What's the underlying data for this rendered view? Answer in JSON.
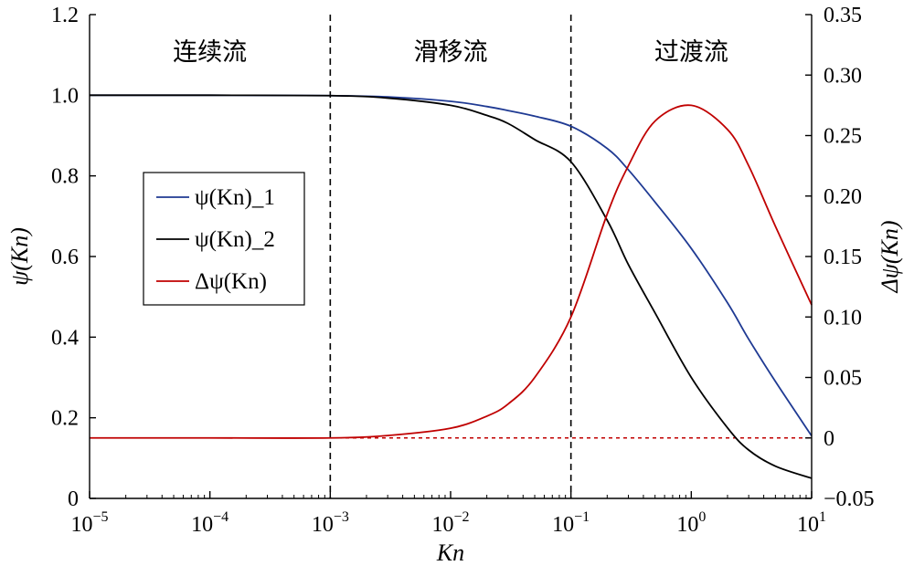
{
  "chart_data": {
    "type": "line",
    "xlabel": "Kn",
    "ylabel": "ψ(Kn)",
    "y2label": "Δψ(Kn)",
    "x_scale": "log",
    "xlim": [
      1e-05,
      10
    ],
    "ylim": [
      0,
      1.2
    ],
    "y2lim": [
      -0.05,
      0.35
    ],
    "x_ticks": [
      {
        "value": 1e-05,
        "base": "10",
        "exp": "−5"
      },
      {
        "value": 0.0001,
        "base": "10",
        "exp": "−4"
      },
      {
        "value": 0.001,
        "base": "10",
        "exp": "−3"
      },
      {
        "value": 0.01,
        "base": "10",
        "exp": "−2"
      },
      {
        "value": 0.1,
        "base": "10",
        "exp": "−1"
      },
      {
        "value": 1,
        "base": "10",
        "exp": "0"
      },
      {
        "value": 10,
        "base": "10",
        "exp": "1"
      }
    ],
    "y_ticks": [
      {
        "value": 0,
        "label": "0"
      },
      {
        "value": 0.2,
        "label": "0.2"
      },
      {
        "value": 0.4,
        "label": "0.4"
      },
      {
        "value": 0.6,
        "label": "0.6"
      },
      {
        "value": 0.8,
        "label": "0.8"
      },
      {
        "value": 1.0,
        "label": "1.0"
      },
      {
        "value": 1.2,
        "label": "1.2"
      }
    ],
    "y2_ticks": [
      {
        "value": -0.05,
        "label": "−0.05"
      },
      {
        "value": 0,
        "label": "0"
      },
      {
        "value": 0.05,
        "label": "0.05"
      },
      {
        "value": 0.1,
        "label": "0.10"
      },
      {
        "value": 0.15,
        "label": "0.15"
      },
      {
        "value": 0.2,
        "label": "0.20"
      },
      {
        "value": 0.25,
        "label": "0.25"
      },
      {
        "value": 0.3,
        "label": "0.30"
      },
      {
        "value": 0.35,
        "label": "0.35"
      }
    ],
    "regions": [
      {
        "label": "连续流",
        "x_center": 0.0001
      },
      {
        "label": "滑移流",
        "x_center": 0.01
      },
      {
        "label": "过渡流",
        "x_center": 1
      }
    ],
    "vertical_lines": [
      0.001,
      0.1
    ],
    "zero_line_y2": 0,
    "legend_position": "center-left",
    "x": [
      1e-05,
      0.0001,
      0.001,
      0.003,
      0.01,
      0.02,
      0.03,
      0.05,
      0.1,
      0.2,
      0.3,
      0.5,
      1,
      2,
      3,
      5,
      10
    ],
    "series": [
      {
        "name": "ψ(Kn)_1",
        "axis": "left",
        "color": "#1f3a93",
        "values": [
          1.0,
          1.0,
          0.999,
          0.996,
          0.985,
          0.972,
          0.962,
          0.948,
          0.923,
          0.868,
          0.815,
          0.735,
          0.62,
          0.485,
          0.395,
          0.29,
          0.155
        ]
      },
      {
        "name": "ψ(Kn)_2",
        "axis": "left",
        "color": "#000000",
        "values": [
          1.0,
          1.0,
          0.999,
          0.993,
          0.975,
          0.95,
          0.93,
          0.89,
          0.835,
          0.69,
          0.58,
          0.46,
          0.3,
          0.175,
          0.12,
          0.08,
          0.05
        ]
      },
      {
        "name": "Δψ(Kn)",
        "axis": "right",
        "color": "#c00000",
        "values": [
          0.0,
          0.0,
          0.0,
          0.002,
          0.008,
          0.018,
          0.028,
          0.05,
          0.1,
          0.185,
          0.225,
          0.262,
          0.275,
          0.255,
          0.225,
          0.175,
          0.11
        ]
      }
    ]
  }
}
